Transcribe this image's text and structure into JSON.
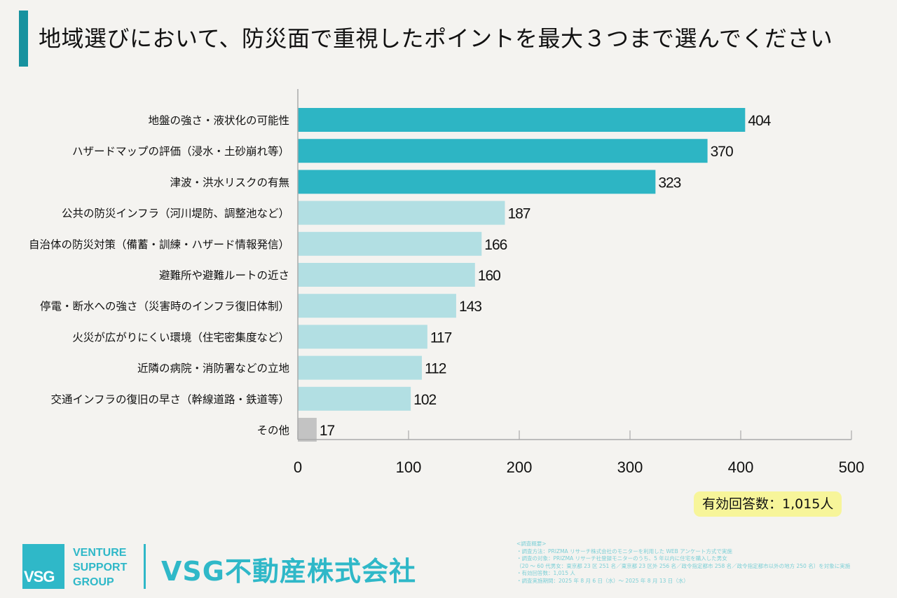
{
  "title": "地域選びにおいて、防災面で重視したポイントを最大３つまで選んでください",
  "colors": {
    "accent": "#17929f",
    "top_bar": "#2db5c4",
    "other_bar": "#b2dfe3",
    "misc_bar": "#c3c3c3",
    "badge": "#f7f59a",
    "brand": "#2fb8c8"
  },
  "chart_data": {
    "type": "bar",
    "orientation": "horizontal",
    "title": "地域選びにおいて、防災面で重視したポイントを最大３つまで選んでください",
    "xlabel": "",
    "ylabel": "",
    "xlim": [
      0,
      500
    ],
    "xticks": [
      "0",
      "100",
      "200",
      "300",
      "400",
      "500"
    ],
    "grid": false,
    "categories": [
      "地盤の強さ・液状化の可能性",
      "ハザードマップの評価（浸水・土砂崩れ等）",
      "津波・洪水リスクの有無",
      "公共の防災インフラ（河川堤防、調整池など）",
      "自治体の防災対策（備蓄・訓練・ハザード情報発信）",
      "避難所や避難ルートの近さ",
      "停電・断水への強さ（災害時のインフラ復旧体制）",
      "火災が広がりにくい環境（住宅密集度など）",
      "近隣の病院・消防署などの立地",
      "交通インフラの復旧の早さ（幹線道路・鉄道等）",
      "その他"
    ],
    "values": [
      404,
      370,
      323,
      187,
      166,
      160,
      143,
      117,
      112,
      102,
      17
    ],
    "bar_colors": [
      "top",
      "top",
      "top",
      "other",
      "other",
      "other",
      "other",
      "other",
      "other",
      "other",
      "misc"
    ]
  },
  "badge": "有効回答数：1,015人",
  "logo": {
    "mark": "VSG",
    "words": [
      "VENTURE",
      "SUPPORT",
      "GROUP"
    ]
  },
  "company": "VSG不動産株式会社",
  "survey": {
    "heading": "<調査概要>",
    "lines": [
      "・調査方法：PRIZMA リサーチ株式会社のモニターを利用した WEB アンケート方式で実施",
      "・調査の対象：PRIZMA リサーチ社登録モニターのうち、5 年以内に住宅を購入した男女",
      "（20 ～ 60 代男女：東京都 23 区 251 名／東京都 23 区外 256 名／政令指定都市 258 名／政令指定都市以外の地方 250 名）を対象に実施",
      "・有効回答数：1,015 人",
      "・調査実施期間：2025 年 8 月 6 日（水）～ 2025 年 8 月 13 日（水）"
    ]
  }
}
